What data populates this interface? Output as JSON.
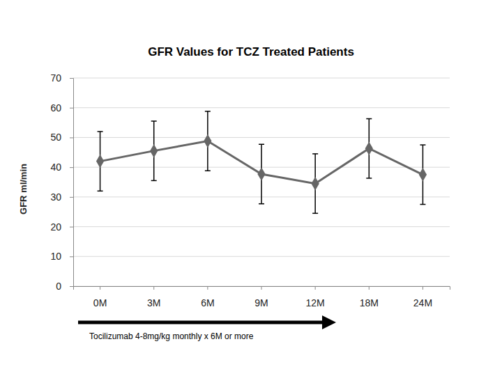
{
  "chart_data": {
    "type": "line",
    "title": "GFR Values for TCZ Treated Patients",
    "y_label": "GFR ml/min",
    "categories": [
      "0M",
      "3M",
      "6M",
      "9M",
      "12M",
      "18M",
      "24M"
    ],
    "values": [
      42,
      45.5,
      48.8,
      37.7,
      34.5,
      46.3,
      37.5
    ],
    "errors": [
      10,
      10,
      10,
      10,
      10,
      10,
      10
    ],
    "color": "#666666",
    "marker": "diamond",
    "ylim": [
      0,
      70
    ],
    "yticks": [
      0,
      10,
      20,
      30,
      40,
      50,
      60,
      70
    ],
    "grid": true,
    "annotation": "Tocilizumab 4-8mg/kg monthly x 6M or more"
  }
}
